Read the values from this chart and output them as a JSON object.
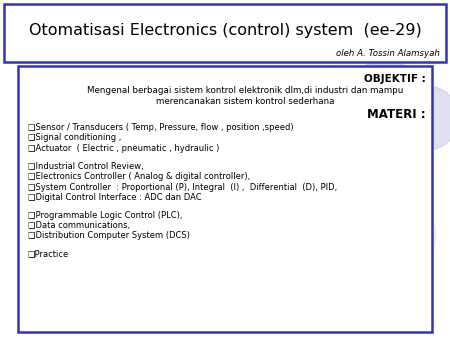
{
  "title_main": "Otomatisasi Electronics (control) system  (ee-29)",
  "title_sub": "oleh A. Tossin Alamsyah",
  "background_color": "#ffffff",
  "border_color": "#3333bb",
  "objektif_label": "OBJEKTIF :",
  "objektif_text1": "Mengenal berbagai sistem kontrol elektronik dlm,di industri dan mampu",
  "objektif_text2": "merencanakan sistem kontrol sederhana",
  "materi_label": "MATERI :",
  "bullet": "❑",
  "items_group1": [
    "Sensor / Transducers ( Temp, Pressure, flow , position ,speed)",
    "Signal conditioning ,",
    "Actuator  ( Electric , pneumatic , hydraulic )"
  ],
  "items_group2": [
    "Industrial Control Review,",
    "Electronics Controller ( Analog & digital controller),",
    "System Controller  : Proportional (P), Integral  (I) ,  Differential  (D), PID,",
    "Digital Control Interface : ADC dan DAC"
  ],
  "items_group3": [
    "Programmable Logic Control (PLC),",
    "Data communications,",
    "Distribution Computer System (DCS)"
  ],
  "items_group4": [
    "Practice"
  ],
  "circle_color": "#b8bce0",
  "font_color": "#000000",
  "figw": 4.5,
  "figh": 3.38,
  "dpi": 100
}
